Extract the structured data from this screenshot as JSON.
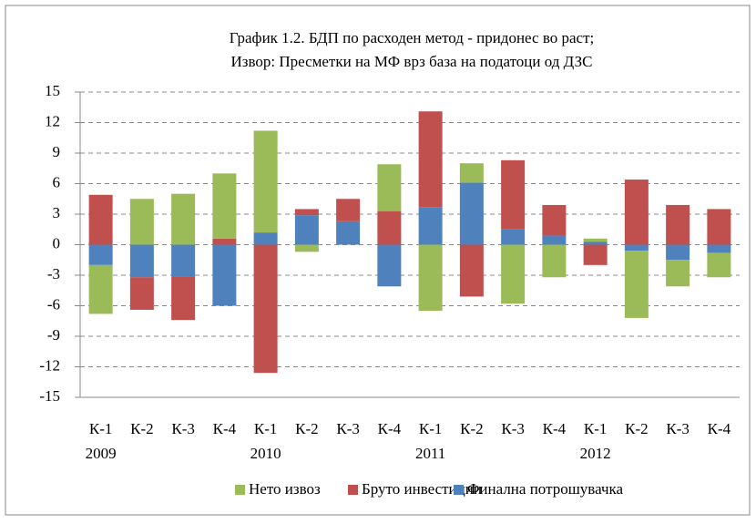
{
  "chart_data": {
    "type": "stacked_bar",
    "title": "График 1.2. БДП по расходен метод - придонес во раст;",
    "subtitle": "Извор: Пресметки на МФ врз база на податоци од ДЗС",
    "categories": [
      "К-1",
      "К-2",
      "К-3",
      "К-4",
      "К-1",
      "К-2",
      "К-3",
      "К-4",
      "К-1",
      "К-2",
      "К-3",
      "К-4",
      "К-1",
      "К-2",
      "К-3",
      "К-4"
    ],
    "category_groups": [
      "2009",
      null,
      null,
      null,
      "2010",
      null,
      null,
      null,
      "2011",
      null,
      null,
      null,
      "2012",
      null,
      null,
      null
    ],
    "series": [
      {
        "name": "Нето извоз",
        "color": "#9bbb59",
        "values": [
          -4.8,
          4.5,
          5.0,
          6.4,
          10.0,
          -0.7,
          0,
          4.6,
          -6.5,
          1.9,
          -5.8,
          -3.2,
          0.3,
          -6.6,
          -2.6,
          -2.4
        ]
      },
      {
        "name": "Бруто инвестиции",
        "color": "#c0504d",
        "values": [
          4.9,
          -3.2,
          -4.3,
          0.6,
          -12.6,
          0.6,
          2.2,
          3.3,
          9.4,
          -5.1,
          6.8,
          3.0,
          -2.0,
          6.4,
          3.9,
          3.5
        ]
      },
      {
        "name": "Финална потрошувачка",
        "color": "#4f81bd",
        "values": [
          -2.0,
          -3.2,
          -3.1,
          -6.0,
          1.2,
          2.9,
          2.3,
          -4.1,
          3.7,
          6.1,
          1.5,
          0.9,
          0.3,
          -0.6,
          -1.5,
          -0.8
        ]
      }
    ],
    "ylim": [
      -15,
      15
    ],
    "yticks": [
      -15,
      -12,
      -9,
      -6,
      -3,
      0,
      3,
      6,
      9,
      12,
      15
    ],
    "grid": true,
    "legend": "bottom"
  }
}
